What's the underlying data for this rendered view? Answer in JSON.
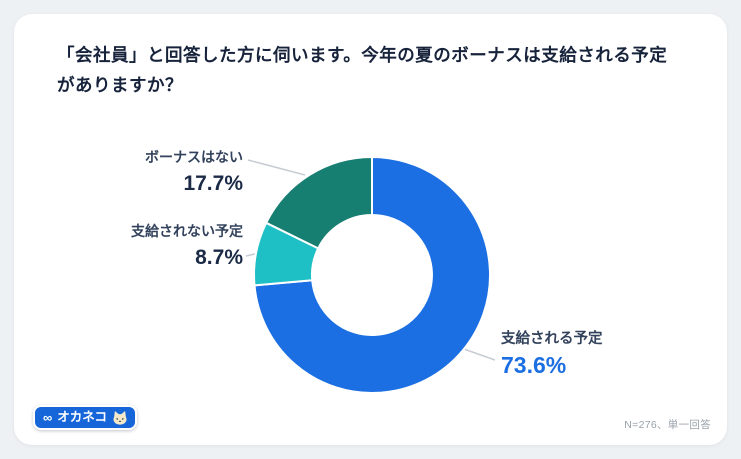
{
  "title": {
    "line1": "「会社員」と回答した方に伺います。今年の夏のボーナスは支給される予定",
    "line2": "がありますか？"
  },
  "chart_data": {
    "type": "pie",
    "subtype": "donut",
    "title": "「会社員」と回答した方に伺います。今年の夏のボーナスは支給される予定がありますか？",
    "categories": [
      "支給される予定",
      "支給されない予定",
      "ボーナスはない"
    ],
    "values": [
      73.6,
      8.7,
      17.7
    ],
    "unit": "%",
    "colors": [
      "#1c6fe2",
      "#1fbfc6",
      "#177e72"
    ],
    "start_angle_deg": 0,
    "direction": "clockwise",
    "inner_radius_ratio": 0.51,
    "legend_position": "callouts",
    "sample_note": "N=276、単一回答"
  },
  "callouts": [
    {
      "label": "ボーナスはない",
      "value": "17.7%"
    },
    {
      "label": "支給されない予定",
      "value": "8.7%"
    },
    {
      "label": "支給される予定",
      "value": "73.6%"
    }
  ],
  "logo": {
    "symbol": "∞",
    "text": "オカネコ"
  },
  "footnote": "N=276、単一回答"
}
